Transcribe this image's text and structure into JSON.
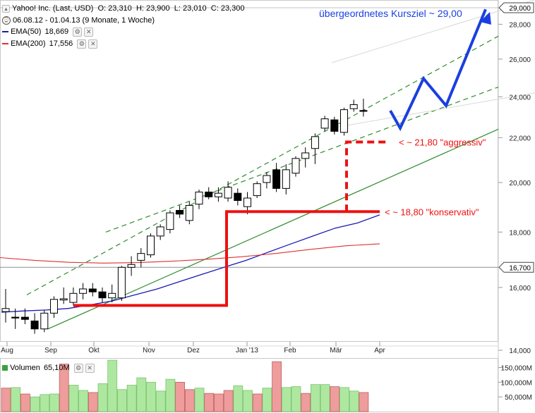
{
  "header": {
    "instrument": "Yahoo! Inc. (Last, USD)",
    "open": "O: 23,310",
    "high": "H: 23,900",
    "low": "L: 23,010",
    "close": "C: 23,300",
    "range": "06.08.12 - 01.04.13 (9 Monate, 1 Woche)",
    "ema50": "EMA(50)",
    "ema50_value": "18,669",
    "ema200": "EMA(200)",
    "ema200_value": "17,556",
    "volume_label": "Volumen",
    "volume_value": "65,10M"
  },
  "icons": {
    "collapse": "chevron-up-icon",
    "clock": "clock-icon",
    "settings": "gear-icon",
    "close": "close-icon"
  },
  "colors": {
    "up_candle": "#ffffff",
    "down_candle": "#000000",
    "ema50": "#1a1ab4",
    "ema200": "#e03030",
    "trend_channel": "#2e8b2e",
    "support": "#ee1111",
    "target_arrow": "#1a3fe0",
    "vol_up": "#aee8a0",
    "vol_down": "#ee9c9c"
  },
  "chart_data": {
    "type": "candlestick",
    "ylim": [
      14000,
      29000
    ],
    "y_scale": "log",
    "y_ticks": [
      {
        "value": 14000,
        "label": "14,000"
      },
      {
        "value": 16000,
        "label": "16,000"
      },
      {
        "value": 18000,
        "label": "18,000"
      },
      {
        "value": 20000,
        "label": "20,000"
      },
      {
        "value": 22000,
        "label": "22,000"
      },
      {
        "value": 24000,
        "label": "24,000"
      },
      {
        "value": 26000,
        "label": "26,000"
      },
      {
        "value": 28000,
        "label": "28,000"
      }
    ],
    "x_ticks": [
      "Aug",
      "Sep",
      "Okt",
      "Nov",
      "Dez",
      "Jan '13",
      "Feb",
      "Mär",
      "Apr"
    ],
    "candles": [
      {
        "o": 15200,
        "h": 15950,
        "l": 14850,
        "c": 15300
      },
      {
        "o": 15020,
        "h": 15300,
        "l": 14650,
        "c": 15000
      },
      {
        "o": 15020,
        "h": 15300,
        "l": 14800,
        "c": 14950
      },
      {
        "o": 14900,
        "h": 15150,
        "l": 14500,
        "c": 14650
      },
      {
        "o": 14650,
        "h": 15250,
        "l": 14550,
        "c": 15150
      },
      {
        "o": 15150,
        "h": 15700,
        "l": 15000,
        "c": 15600
      },
      {
        "o": 15580,
        "h": 16000,
        "l": 15450,
        "c": 15620
      },
      {
        "o": 15500,
        "h": 16000,
        "l": 15400,
        "c": 15800
      },
      {
        "o": 15800,
        "h": 16150,
        "l": 15600,
        "c": 15950
      },
      {
        "o": 15950,
        "h": 16150,
        "l": 15700,
        "c": 15850
      },
      {
        "o": 15850,
        "h": 16000,
        "l": 15500,
        "c": 15650
      },
      {
        "o": 15650,
        "h": 16100,
        "l": 15500,
        "c": 15800
      },
      {
        "o": 15650,
        "h": 16750,
        "l": 15550,
        "c": 16700
      },
      {
        "o": 16700,
        "h": 17100,
        "l": 16400,
        "c": 16800
      },
      {
        "o": 16950,
        "h": 17400,
        "l": 16700,
        "c": 17200
      },
      {
        "o": 17150,
        "h": 17950,
        "l": 17050,
        "c": 17850
      },
      {
        "o": 17850,
        "h": 18300,
        "l": 17700,
        "c": 18200
      },
      {
        "o": 18100,
        "h": 18850,
        "l": 17950,
        "c": 18750
      },
      {
        "o": 18850,
        "h": 19050,
        "l": 18550,
        "c": 18700
      },
      {
        "o": 18450,
        "h": 19200,
        "l": 18300,
        "c": 19050
      },
      {
        "o": 19100,
        "h": 19700,
        "l": 18900,
        "c": 19600
      },
      {
        "o": 19600,
        "h": 19800,
        "l": 19300,
        "c": 19400
      },
      {
        "o": 19400,
        "h": 19800,
        "l": 19200,
        "c": 19550
      },
      {
        "o": 19350,
        "h": 20050,
        "l": 19200,
        "c": 19800
      },
      {
        "o": 19550,
        "h": 19750,
        "l": 19050,
        "c": 19250
      },
      {
        "o": 19000,
        "h": 19600,
        "l": 18700,
        "c": 19350
      },
      {
        "o": 19450,
        "h": 20050,
        "l": 19350,
        "c": 19950
      },
      {
        "o": 20000,
        "h": 20450,
        "l": 19750,
        "c": 20300
      },
      {
        "o": 20550,
        "h": 20850,
        "l": 19600,
        "c": 19750
      },
      {
        "o": 19750,
        "h": 20800,
        "l": 19500,
        "c": 20550
      },
      {
        "o": 20400,
        "h": 21150,
        "l": 20250,
        "c": 21050
      },
      {
        "o": 21050,
        "h": 21550,
        "l": 20650,
        "c": 21300
      },
      {
        "o": 21500,
        "h": 22200,
        "l": 20800,
        "c": 22050
      },
      {
        "o": 22450,
        "h": 23050,
        "l": 22300,
        "c": 22900
      },
      {
        "o": 22850,
        "h": 23000,
        "l": 22150,
        "c": 22300
      },
      {
        "o": 22250,
        "h": 23450,
        "l": 22100,
        "c": 23350
      },
      {
        "o": 23400,
        "h": 23850,
        "l": 23250,
        "c": 23600
      },
      {
        "o": 23310,
        "h": 23900,
        "l": 23010,
        "c": 23300
      }
    ],
    "ema50": [
      15180,
      15220,
      15250,
      15300,
      15420,
      15550,
      15750,
      15950,
      16200,
      16450,
      16700,
      16950,
      17250,
      17550,
      17850,
      18150,
      18350,
      18669
    ],
    "ema200": [
      17050,
      16950,
      16880,
      16850,
      16870,
      16920,
      16990,
      17080,
      17200,
      17350,
      17480,
      17556
    ],
    "price_marker": {
      "value": 29000,
      "label": "29,000"
    },
    "hline": {
      "value": 16700,
      "label": "16,700"
    },
    "annotations": [
      {
        "text": "übergeordnetes Kursziel ~ 29,00"
      },
      {
        "text": "< ~ 21,80 \"aggressiv\"",
        "value": 21800
      },
      {
        "text": "< ~ 18,80 \"konservativ\"",
        "value": 18800
      }
    ],
    "volume": {
      "unit": "M",
      "ticks": [
        {
          "value": 50,
          "label": "50,000M"
        },
        {
          "value": 100,
          "label": "100,000M"
        },
        {
          "value": 150,
          "label": "150,000M"
        }
      ],
      "ylim": [
        0,
        180
      ],
      "bars": [
        {
          "v": 80,
          "up": false
        },
        {
          "v": 82,
          "up": true
        },
        {
          "v": 60,
          "up": false
        },
        {
          "v": 50,
          "up": true
        },
        {
          "v": 58,
          "up": true
        },
        {
          "v": 60,
          "up": true
        },
        {
          "v": 162,
          "up": false
        },
        {
          "v": 90,
          "up": true
        },
        {
          "v": 72,
          "up": true
        },
        {
          "v": 65,
          "up": false
        },
        {
          "v": 95,
          "up": true
        },
        {
          "v": 175,
          "up": true
        },
        {
          "v": 75,
          "up": true
        },
        {
          "v": 90,
          "up": true
        },
        {
          "v": 115,
          "up": true
        },
        {
          "v": 100,
          "up": true
        },
        {
          "v": 70,
          "up": true
        },
        {
          "v": 110,
          "up": true
        },
        {
          "v": 100,
          "up": false
        },
        {
          "v": 75,
          "up": false
        },
        {
          "v": 80,
          "up": true
        },
        {
          "v": 62,
          "up": false
        },
        {
          "v": 60,
          "up": false
        },
        {
          "v": 72,
          "up": false
        },
        {
          "v": 88,
          "up": true
        },
        {
          "v": 72,
          "up": true
        },
        {
          "v": 60,
          "up": false
        },
        {
          "v": 80,
          "up": true
        },
        {
          "v": 170,
          "up": false
        },
        {
          "v": 82,
          "up": true
        },
        {
          "v": 85,
          "up": true
        },
        {
          "v": 62,
          "up": false
        },
        {
          "v": 92,
          "up": true
        },
        {
          "v": 92,
          "up": true
        },
        {
          "v": 85,
          "up": false
        },
        {
          "v": 82,
          "up": true
        },
        {
          "v": 70,
          "up": true
        },
        {
          "v": 65,
          "up": false
        }
      ]
    }
  }
}
